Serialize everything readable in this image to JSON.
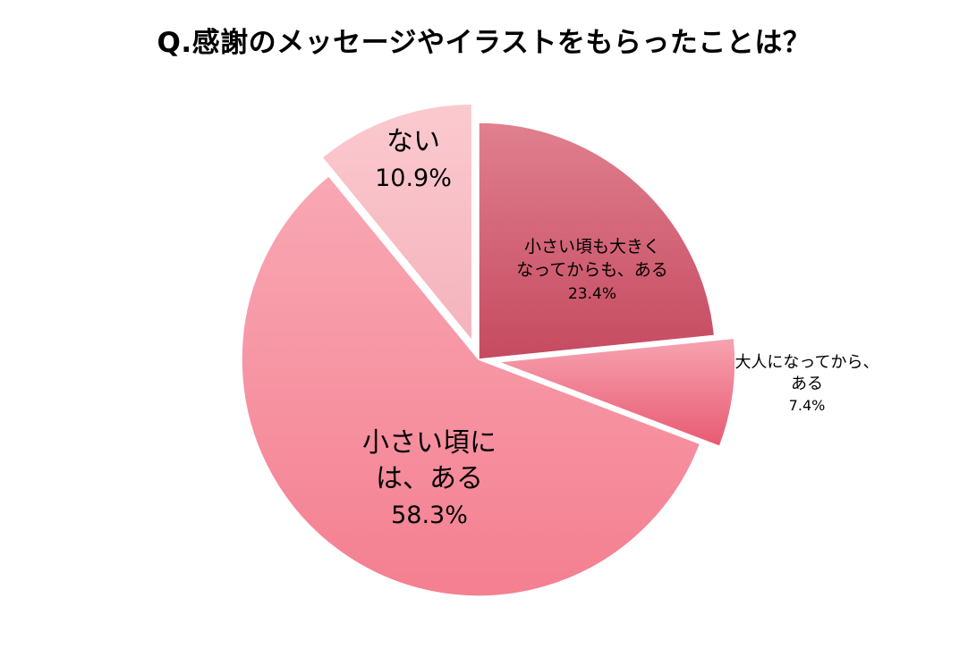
{
  "chart_data": {
    "type": "pie",
    "title": "Q.感謝のメッセージやイラストをもらったことは？",
    "slices": [
      {
        "label_lines": [
          "小さい頃も大きく",
          "なってからも、ある"
        ],
        "value": 23.4,
        "value_label": "23.4%",
        "color_top": "#e0808f",
        "color_bottom": "#c54a60",
        "exploded": false
      },
      {
        "label_lines": [
          "大人になってから、",
          "ある"
        ],
        "value": 7.4,
        "value_label": "7.4%",
        "color_top": "#f7a3b0",
        "color_bottom": "#e85a72",
        "exploded": true
      },
      {
        "label_lines": [
          "小さい頃に",
          "は、ある"
        ],
        "value": 58.3,
        "value_label": "58.3%",
        "color_top": "#f9a8b4",
        "color_bottom": "#f47f90",
        "exploded": false
      },
      {
        "label_lines": [
          "ない"
        ],
        "value": 10.9,
        "value_label": "10.9%",
        "color_top": "#fbc9cf",
        "color_bottom": "#f5b3bc",
        "exploded": true
      }
    ]
  }
}
